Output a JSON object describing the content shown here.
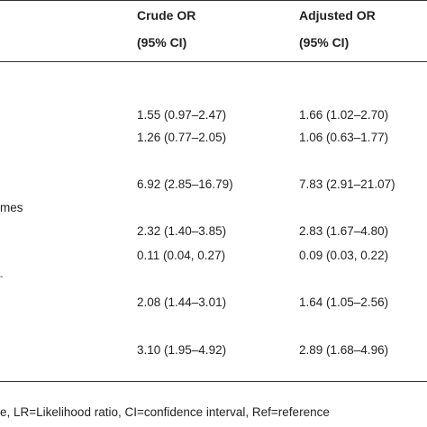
{
  "table": {
    "header": {
      "crude_title": "Crude OR",
      "crude_ci": "(95% CI)",
      "adjusted_title": "Adjusted OR",
      "adjusted_ci": "(95% CI)"
    },
    "stubs": {
      "outcomes_fragment": "mes",
      "dash_fragment": "-"
    },
    "rows": [
      {
        "crude": "1.55 (0.97–2.47)",
        "adjusted": "1.66 (1.02–2.70)"
      },
      {
        "crude": "1.26 (0.77–2.05)",
        "adjusted": "1.06 (0.63–1.77)"
      },
      {
        "crude": "6.92 (2.85–16.79)",
        "adjusted": "7.83 (2.91–21.07)"
      },
      {
        "crude": "2.32 (1.40–3.85)",
        "adjusted": "2.83 (1.67–4.80)"
      },
      {
        "crude": "0.11 (0.04, 0.27)",
        "adjusted": "0.09 (0.03, 0.22)"
      },
      {
        "crude": "2.08 (1.44–3.01)",
        "adjusted": "1.64 (1.05–2.56)"
      },
      {
        "crude": "3.10 (1.95–4.92)",
        "adjusted": "2.89 (1.68–4.96)"
      }
    ],
    "footnote": "e, LR=Likelihood ratio, CI=confidence interval, Ref=reference"
  }
}
